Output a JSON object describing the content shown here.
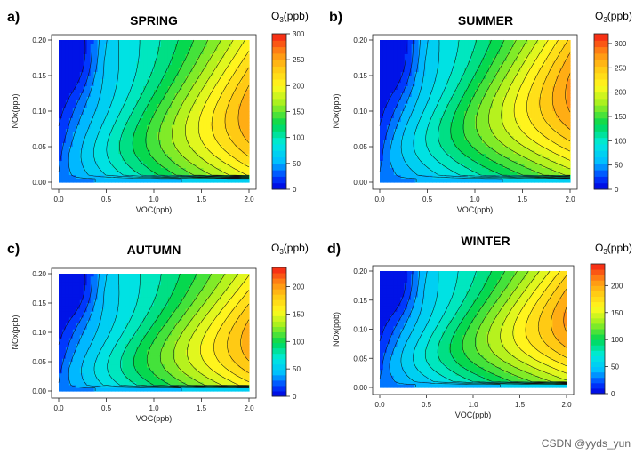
{
  "chart_data": [
    {
      "type": "contour",
      "panel_label": "a)",
      "title": "SPRING",
      "xlabel": "VOC(ppb)",
      "ylabel": "NOx(ppb)",
      "colorbar_label": "O3(ppb)",
      "colorbar_label_base": "O",
      "colorbar_label_sub": "3",
      "colorbar_label_rest": "(ppb)",
      "xlim": [
        0,
        2
      ],
      "ylim": [
        0,
        0.2
      ],
      "x_ticks": [
        "0.0",
        "0.5",
        "1.0",
        "1.5",
        "2.0"
      ],
      "y_ticks": [
        "0.00",
        "0.05",
        "0.10",
        "0.15",
        "0.20"
      ],
      "zlim": [
        0,
        300
      ],
      "colorbar_ticks": [
        "0",
        "50",
        "100",
        "150",
        "200",
        "250",
        "300"
      ],
      "peak": {
        "voc": 2.0,
        "nox": 0.075,
        "o3": 290
      }
    },
    {
      "type": "contour",
      "panel_label": "b)",
      "title": "SUMMER",
      "xlabel": "VOC(ppb)",
      "ylabel": "NOx(ppb)",
      "colorbar_label": "O3(ppb)",
      "colorbar_label_base": "O",
      "colorbar_label_sub": "3",
      "colorbar_label_rest": "(ppb)",
      "xlim": [
        0,
        2
      ],
      "ylim": [
        0,
        0.2
      ],
      "x_ticks": [
        "0.0",
        "0.5",
        "1.0",
        "1.5",
        "2.0"
      ],
      "y_ticks": [
        "0.00",
        "0.05",
        "0.10",
        "0.15",
        "0.20"
      ],
      "zlim": [
        0,
        320
      ],
      "colorbar_ticks": [
        "0",
        "50",
        "100",
        "150",
        "200",
        "250",
        "300"
      ],
      "peak": {
        "voc": 2.0,
        "nox": 0.11,
        "o3": 310
      }
    },
    {
      "type": "contour",
      "panel_label": "c)",
      "title": "AUTUMN",
      "xlabel": "VOC(ppb)",
      "ylabel": "NOx(ppb)",
      "colorbar_label": "O3(ppb)",
      "colorbar_label_base": "O",
      "colorbar_label_sub": "3",
      "colorbar_label_rest": "(ppb)",
      "xlim": [
        0,
        2
      ],
      "ylim": [
        0,
        0.2
      ],
      "x_ticks": [
        "0.0",
        "0.5",
        "1.0",
        "1.5",
        "2.0"
      ],
      "y_ticks": [
        "0.00",
        "0.05",
        "0.10",
        "0.15",
        "0.20"
      ],
      "zlim": [
        0,
        235
      ],
      "colorbar_ticks": [
        "0",
        "50",
        "100",
        "150",
        "200"
      ],
      "peak": {
        "voc": 2.0,
        "nox": 0.065,
        "o3": 225
      }
    },
    {
      "type": "contour",
      "panel_label": "d)",
      "title": "WINTER",
      "xlabel": "VOC(ppb)",
      "ylabel": "NOx(ppb)",
      "colorbar_label": "O3(ppb)",
      "colorbar_label_base": "O",
      "colorbar_label_sub": "3",
      "colorbar_label_rest": "(ppb)",
      "xlim": [
        0,
        2
      ],
      "ylim": [
        0,
        0.2
      ],
      "x_ticks": [
        "0.0",
        "0.5",
        "1.0",
        "1.5",
        "2.0"
      ],
      "y_ticks": [
        "0.00",
        "0.05",
        "0.10",
        "0.15",
        "0.20"
      ],
      "zlim": [
        0,
        240
      ],
      "colorbar_ticks": [
        "0",
        "50",
        "100",
        "150",
        "200"
      ],
      "peak": {
        "voc": 2.0,
        "nox": 0.1,
        "o3": 230
      }
    }
  ],
  "watermark": "CSDN @yyds_yun"
}
